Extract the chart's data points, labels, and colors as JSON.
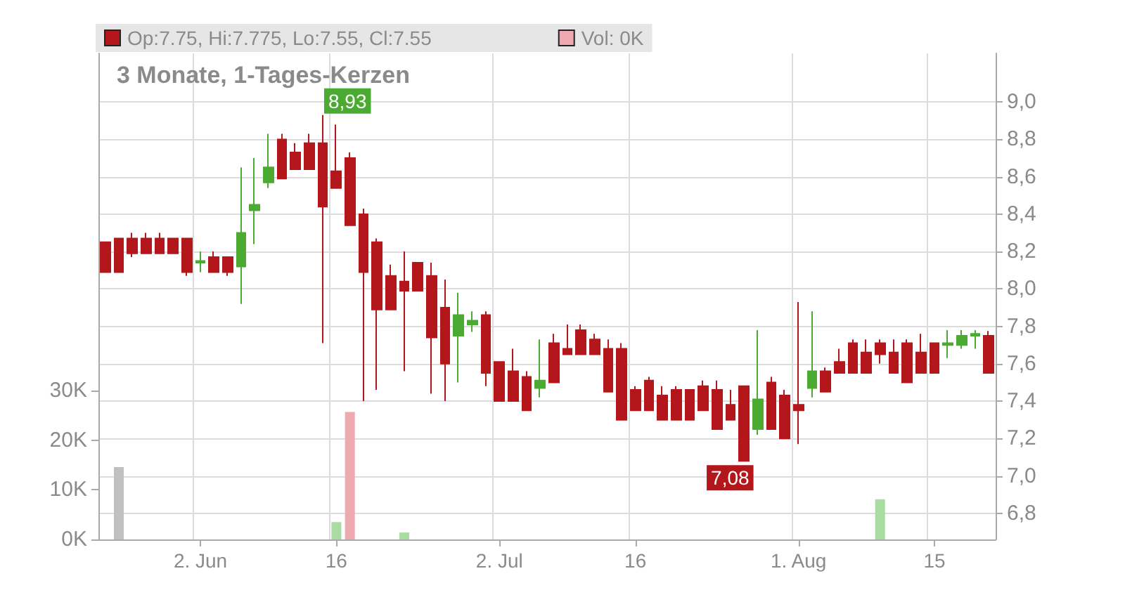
{
  "chart_data": {
    "type": "candlestick",
    "title": "3 Monate, 1-Tages-Kerzen",
    "categories": [
      null,
      null,
      null,
      null,
      null,
      null,
      null,
      "2. Jun",
      null,
      null,
      null,
      null,
      null,
      null,
      null,
      null,
      null,
      "16",
      null,
      null,
      null,
      null,
      null,
      null,
      null,
      null,
      null,
      null,
      null,
      "2. Jul",
      null,
      null,
      null,
      null,
      null,
      null,
      null,
      null,
      null,
      "16",
      null,
      null,
      null,
      null,
      null,
      null,
      null,
      null,
      null,
      null,
      null,
      "1. Aug",
      null,
      null,
      null,
      null,
      null,
      null,
      null,
      null,
      null,
      "15",
      null,
      null,
      null,
      null
    ],
    "series": [
      {
        "name": "Op:7.75, Hi:7.775, Lo:7.55, Cl:7.55",
        "color": "#b3161b",
        "ohlc": [
          [
            8.25,
            8.25,
            8.09,
            8.09
          ],
          [
            8.27,
            8.27,
            8.09,
            8.09
          ],
          [
            8.27,
            8.3,
            8.17,
            8.19
          ],
          [
            8.27,
            8.3,
            8.19,
            8.19
          ],
          [
            8.27,
            8.3,
            8.19,
            8.19
          ],
          [
            8.27,
            8.27,
            8.19,
            8.19
          ],
          [
            8.27,
            8.27,
            8.07,
            8.09
          ],
          [
            8.14,
            8.2,
            8.09,
            8.15
          ],
          [
            8.17,
            8.2,
            8.09,
            8.09
          ],
          [
            8.17,
            8.17,
            8.07,
            8.09
          ],
          [
            8.12,
            8.65,
            7.92,
            8.3
          ],
          [
            8.42,
            8.7,
            8.24,
            8.45
          ],
          [
            8.57,
            8.83,
            8.54,
            8.65
          ],
          [
            8.8,
            8.83,
            8.59,
            8.59
          ],
          [
            8.73,
            8.78,
            8.64,
            8.64
          ],
          [
            8.78,
            8.83,
            8.64,
            8.64
          ],
          [
            8.78,
            8.93,
            7.71,
            8.44
          ],
          [
            8.63,
            8.88,
            8.54,
            8.54
          ],
          [
            8.7,
            8.73,
            8.34,
            8.34
          ],
          [
            8.4,
            8.43,
            7.4,
            8.09
          ],
          [
            8.25,
            8.27,
            7.46,
            7.89
          ],
          [
            8.07,
            8.13,
            7.89,
            7.89
          ],
          [
            8.04,
            8.2,
            7.56,
            7.99
          ],
          [
            8.14,
            8.14,
            7.99,
            7.99
          ],
          [
            8.07,
            8.14,
            7.44,
            7.74
          ],
          [
            7.9,
            8.05,
            7.4,
            7.6
          ],
          [
            7.75,
            7.98,
            7.5,
            7.86
          ],
          [
            7.81,
            7.88,
            7.77,
            7.83
          ],
          [
            7.86,
            7.88,
            7.48,
            7.55
          ],
          [
            7.61,
            7.61,
            7.4,
            7.4
          ],
          [
            7.56,
            7.68,
            7.4,
            7.4
          ],
          [
            7.53,
            7.56,
            7.35,
            7.35
          ],
          [
            7.47,
            7.73,
            7.42,
            7.51
          ],
          [
            7.71,
            7.76,
            7.5,
            7.5
          ],
          [
            7.68,
            7.81,
            7.65,
            7.65
          ],
          [
            7.78,
            7.81,
            7.65,
            7.65
          ],
          [
            7.73,
            7.76,
            7.65,
            7.65
          ],
          [
            7.68,
            7.73,
            7.45,
            7.45
          ],
          [
            7.68,
            7.71,
            7.3,
            7.3
          ],
          [
            7.46,
            7.48,
            7.35,
            7.35
          ],
          [
            7.51,
            7.53,
            7.35,
            7.35
          ],
          [
            7.43,
            7.48,
            7.3,
            7.3
          ],
          [
            7.46,
            7.48,
            7.3,
            7.3
          ],
          [
            7.46,
            7.46,
            7.3,
            7.3
          ],
          [
            7.48,
            7.51,
            7.35,
            7.35
          ],
          [
            7.46,
            7.51,
            7.25,
            7.25
          ],
          [
            7.38,
            7.46,
            7.3,
            7.3
          ],
          [
            7.48,
            7.48,
            7.08,
            7.08
          ],
          [
            7.25,
            7.78,
            7.22,
            7.41
          ],
          [
            7.5,
            7.53,
            7.25,
            7.25
          ],
          [
            7.43,
            7.46,
            7.2,
            7.2
          ],
          [
            7.38,
            7.93,
            7.17,
            7.35
          ],
          [
            7.47,
            7.88,
            7.42,
            7.56
          ],
          [
            7.56,
            7.58,
            7.45,
            7.45
          ],
          [
            7.61,
            7.68,
            7.55,
            7.55
          ],
          [
            7.71,
            7.73,
            7.55,
            7.55
          ],
          [
            7.66,
            7.73,
            7.55,
            7.55
          ],
          [
            7.71,
            7.73,
            7.6,
            7.65
          ],
          [
            7.66,
            7.73,
            7.55,
            7.55
          ],
          [
            7.71,
            7.73,
            7.5,
            7.5
          ],
          [
            7.66,
            7.76,
            7.55,
            7.55
          ],
          [
            7.71,
            7.71,
            7.55,
            7.55
          ],
          [
            7.7,
            7.78,
            7.63,
            7.71
          ],
          [
            7.7,
            7.78,
            7.68,
            7.75
          ],
          [
            7.75,
            7.78,
            7.68,
            7.76
          ],
          [
            7.75,
            7.775,
            7.55,
            7.55
          ]
        ],
        "colors": [
          "#b3161b",
          "#b3161b",
          "#b3161b",
          "#b3161b",
          "#b3161b",
          "#b3161b",
          "#b3161b",
          "#4aaa32",
          "#b3161b",
          "#b3161b",
          "#4aaa32",
          "#4aaa32",
          "#4aaa32",
          "#b3161b",
          "#b3161b",
          "#b3161b",
          "#b3161b",
          "#b3161b",
          "#b3161b",
          "#b3161b",
          "#b3161b",
          "#b3161b",
          "#b3161b",
          "#b3161b",
          "#b3161b",
          "#b3161b",
          "#4aaa32",
          "#4aaa32",
          "#b3161b",
          "#b3161b",
          "#b3161b",
          "#b3161b",
          "#4aaa32",
          "#b3161b",
          "#b3161b",
          "#b3161b",
          "#b3161b",
          "#b3161b",
          "#b3161b",
          "#b3161b",
          "#b3161b",
          "#b3161b",
          "#b3161b",
          "#b3161b",
          "#b3161b",
          "#b3161b",
          "#b3161b",
          "#b3161b",
          "#4aaa32",
          "#b3161b",
          "#b3161b",
          "#b3161b",
          "#4aaa32",
          "#b3161b",
          "#b3161b",
          "#b3161b",
          "#b3161b",
          "#b3161b",
          "#b3161b",
          "#b3161b",
          "#b3161b",
          "#b3161b",
          "#4aaa32",
          "#4aaa32",
          "#4aaa32",
          "#b3161b"
        ]
      },
      {
        "type": "bar",
        "axis": "y2",
        "name": "Vol: 0K",
        "color": "#eeaab0",
        "values": [
          0,
          14.6,
          0,
          0,
          0,
          0,
          0,
          0,
          0,
          0,
          0,
          0,
          0,
          0,
          0,
          0,
          0,
          3.5,
          25.7,
          0,
          0,
          0,
          1.4,
          0,
          0,
          0,
          0,
          0,
          0,
          0,
          0,
          0,
          0,
          0,
          0,
          0,
          0,
          0,
          0,
          0,
          0,
          0,
          0,
          0,
          0,
          0,
          0,
          0,
          0,
          0,
          0,
          0,
          0,
          0,
          0,
          0,
          0,
          8.1,
          0,
          0,
          0,
          0,
          0,
          0,
          0,
          0
        ],
        "colors": [
          "#eeaab0",
          "#c0c0c0",
          "#eeaab0",
          "#eeaab0",
          "#eeaab0",
          "#eeaab0",
          "#eeaab0",
          "#eeaab0",
          "#eeaab0",
          "#eeaab0",
          "#eeaab0",
          "#eeaab0",
          "#eeaab0",
          "#eeaab0",
          "#eeaab0",
          "#eeaab0",
          "#eeaab0",
          "#a8dca0",
          "#eeaab0",
          "#eeaab0",
          "#eeaab0",
          "#eeaab0",
          "#a8dca0",
          "#eeaab0",
          "#eeaab0",
          "#eeaab0",
          "#eeaab0",
          "#eeaab0",
          "#eeaab0",
          "#eeaab0",
          "#eeaab0",
          "#eeaab0",
          "#eeaab0",
          "#eeaab0",
          "#eeaab0",
          "#eeaab0",
          "#eeaab0",
          "#eeaab0",
          "#eeaab0",
          "#eeaab0",
          "#eeaab0",
          "#eeaab0",
          "#eeaab0",
          "#eeaab0",
          "#eeaab0",
          "#eeaab0",
          "#eeaab0",
          "#eeaab0",
          "#eeaab0",
          "#eeaab0",
          "#eeaab0",
          "#eeaab0",
          "#eeaab0",
          "#eeaab0",
          "#eeaab0",
          "#eeaab0",
          "#eeaab0",
          "#a8dca0",
          "#eeaab0",
          "#eeaab0",
          "#eeaab0",
          "#eeaab0",
          "#eeaab0",
          "#eeaab0",
          "#eeaab0",
          "#eeaab0"
        ]
      }
    ],
    "ylim": [
      6.66,
      9.26
    ],
    "yticks": [
      {
        "value": 6.8,
        "label": "6,8"
      },
      {
        "value": 7.0,
        "label": "7,0"
      },
      {
        "value": 7.2,
        "label": "7,2"
      },
      {
        "value": 7.4,
        "label": "7,4"
      },
      {
        "value": 7.6,
        "label": "7,6"
      },
      {
        "value": 7.8,
        "label": "7,8"
      },
      {
        "value": 8.0,
        "label": "8,0"
      },
      {
        "value": 8.2,
        "label": "8,2"
      },
      {
        "value": 8.4,
        "label": "8,4"
      },
      {
        "value": 8.6,
        "label": "8,6"
      },
      {
        "value": 8.8,
        "label": "8,8"
      },
      {
        "value": 9.0,
        "label": "9,0"
      }
    ],
    "y2lim": [
      0,
      98
    ],
    "y2ticks": [
      {
        "value": 0,
        "label": "0K"
      },
      {
        "value": 10,
        "label": "10K"
      },
      {
        "value": 20,
        "label": "20K"
      },
      {
        "value": 30,
        "label": "30K"
      }
    ],
    "annotations": [
      "8,93",
      "7,08"
    ],
    "grid": true,
    "legend": "top left"
  }
}
